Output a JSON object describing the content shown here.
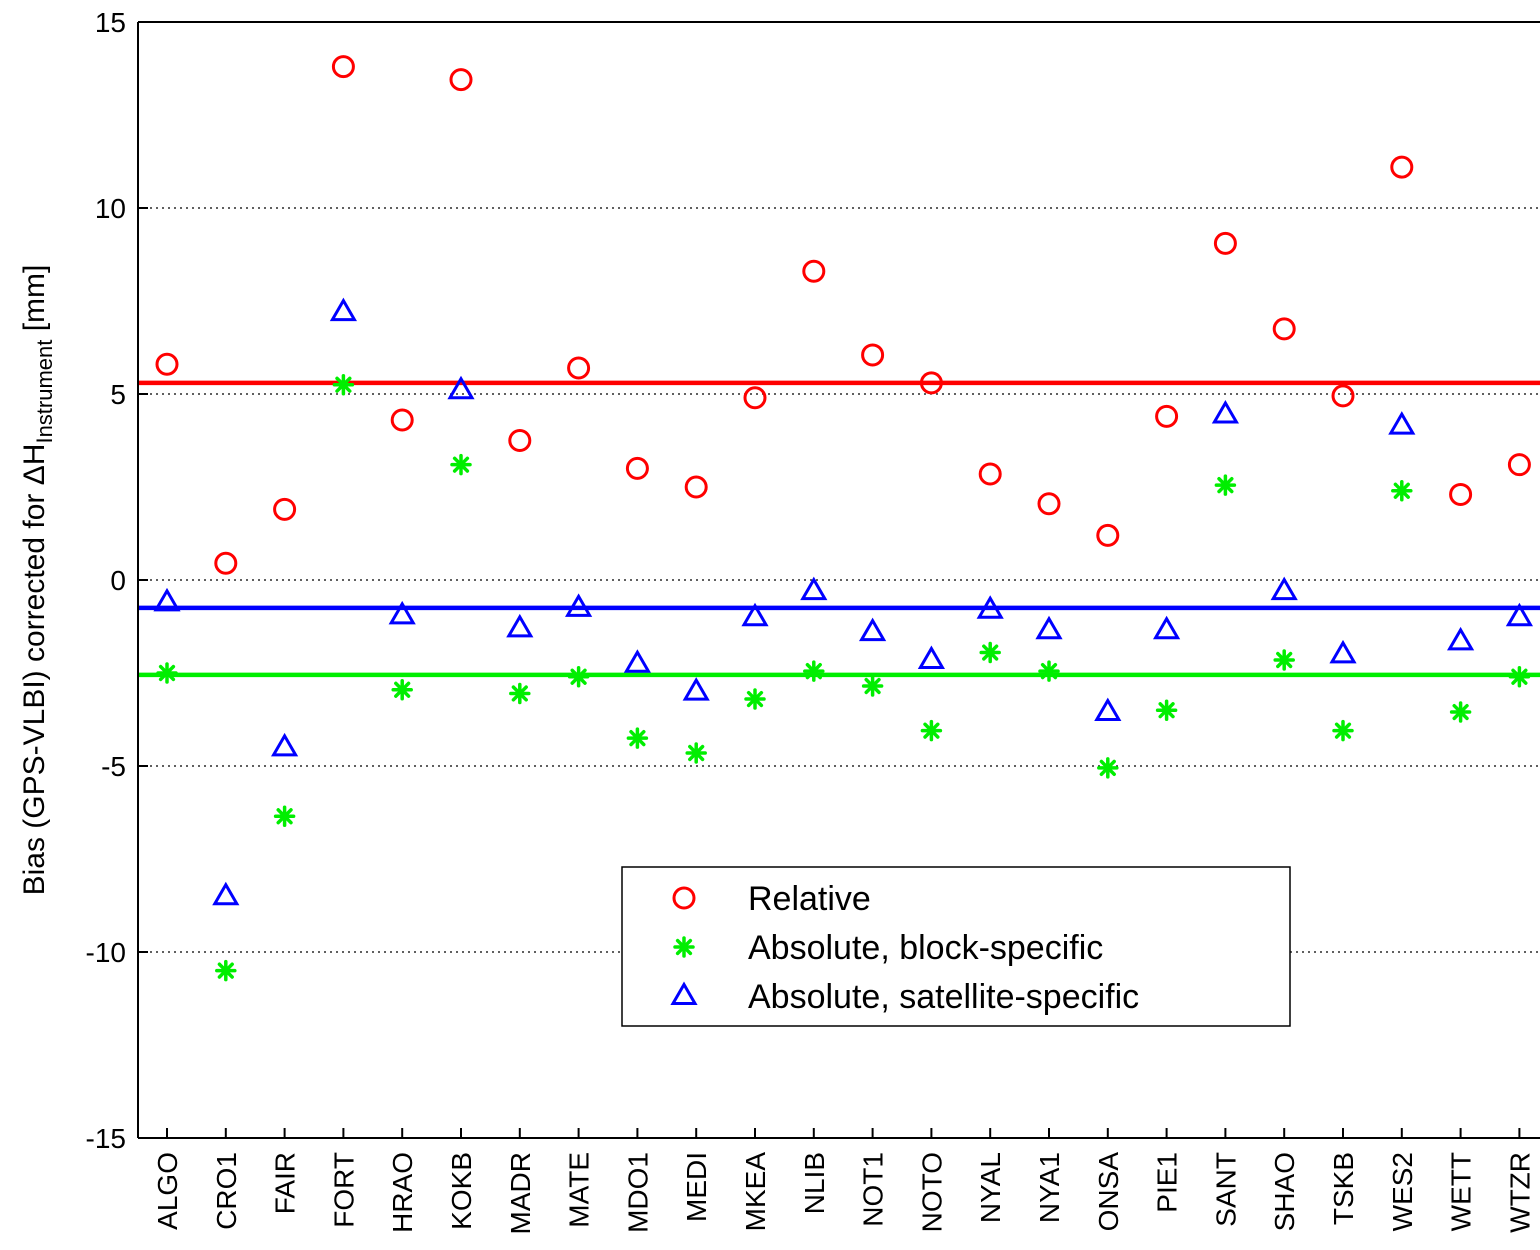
{
  "chart_data": {
    "type": "scatter",
    "categories": [
      "ALGO",
      "CRO1",
      "FAIR",
      "FORT",
      "HRAO",
      "KOKB",
      "MADR",
      "MATE",
      "MDO1",
      "MEDI",
      "MKEA",
      "NLIB",
      "NOT1",
      "NOTO",
      "NYAL",
      "NYA1",
      "ONSA",
      "PIE1",
      "SANT",
      "SHAO",
      "TSKB",
      "WES2",
      "WETT",
      "WTZR"
    ],
    "ylabel": {
      "prefix": "Bias (GPS-VLBI) corrected for ",
      "delta": "Δ",
      "H": "H",
      "subscript": "Instrument",
      "suffix": " [mm]"
    },
    "ylim": [
      -15,
      15
    ],
    "yticks": [
      -15,
      -10,
      -5,
      0,
      5,
      10,
      15
    ],
    "grid": "horizontal dotted",
    "legend_position": "bottom-center",
    "series": [
      {
        "name": "Relative",
        "marker": "circle",
        "color": "#ff0000",
        "mean": 5.3,
        "values": [
          5.8,
          0.45,
          1.9,
          13.8,
          4.3,
          13.45,
          3.75,
          5.7,
          3.0,
          2.5,
          4.9,
          8.3,
          6.05,
          5.3,
          2.85,
          2.05,
          1.2,
          4.4,
          9.05,
          6.75,
          4.95,
          11.1,
          2.3,
          3.1
        ]
      },
      {
        "name": "Absolute, block-specific",
        "marker": "asterisk",
        "color": "#00ee00",
        "mean": -2.55,
        "values": [
          -2.5,
          -10.5,
          -6.35,
          5.25,
          -2.95,
          3.1,
          -3.05,
          -2.6,
          -4.25,
          -4.65,
          -3.2,
          -2.45,
          -2.85,
          -4.05,
          -1.95,
          -2.45,
          -5.05,
          -3.5,
          2.55,
          -2.15,
          -4.05,
          2.4,
          -3.55,
          -2.6
        ]
      },
      {
        "name": "Absolute, satellite-specific",
        "marker": "triangle",
        "color": "#0000ff",
        "mean": -0.75,
        "values": [
          -0.6,
          -8.5,
          -4.5,
          7.2,
          -0.95,
          5.1,
          -1.3,
          -0.75,
          -2.25,
          -3.0,
          -1.0,
          -0.3,
          -1.4,
          -2.15,
          -0.8,
          -1.35,
          -3.55,
          -1.35,
          4.45,
          -0.3,
          -2.0,
          4.15,
          -1.65,
          -1.0
        ]
      }
    ]
  }
}
